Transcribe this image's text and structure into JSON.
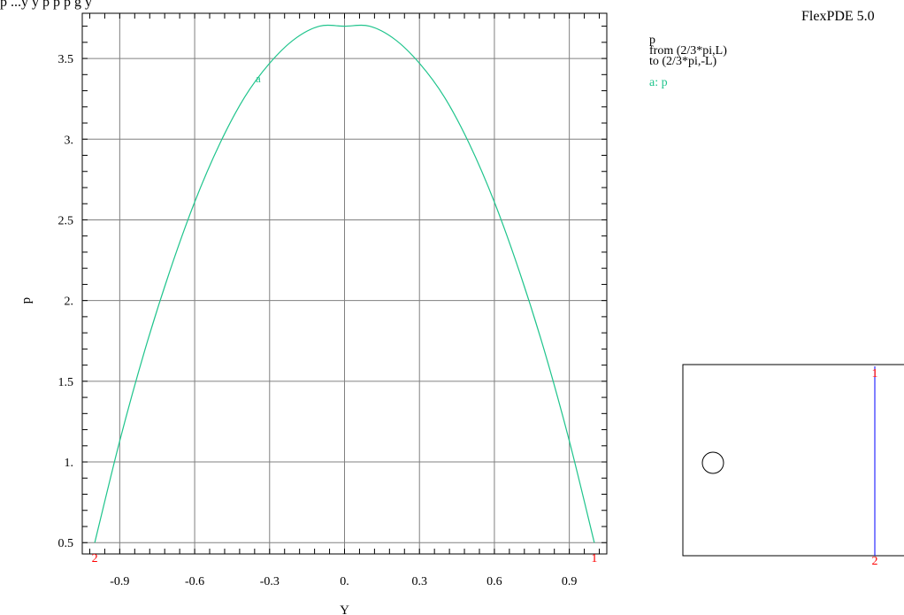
{
  "header": {
    "title": "p        ...y     y    p            p    p         g  y     ",
    "brand": "FlexPDE 5.0"
  },
  "legend": {
    "var": "p",
    "from": "from (2/3*pi,L)",
    "to": "to  (2/3*pi,-L)",
    "series_label": "a: p"
  },
  "chart_data": {
    "type": "line",
    "title": "",
    "xlabel": "Y",
    "ylabel": "p",
    "xlim": [
      -1.05,
      1.05
    ],
    "ylim": [
      0.43,
      3.78
    ],
    "x_ticks": [
      -0.9,
      -0.6,
      -0.3,
      0.0,
      0.3,
      0.6,
      0.9
    ],
    "x_tick_labels": [
      "-0.9",
      "-0.6",
      "-0.3",
      "0.",
      "0.3",
      "0.6",
      "0.9"
    ],
    "y_ticks": [
      0.5,
      1.0,
      1.5,
      2.0,
      2.5,
      3.0,
      3.5
    ],
    "y_tick_labels": [
      "0.5",
      "1.",
      "1.5",
      "2.",
      "2.5",
      "3.",
      "3.5"
    ],
    "grid": true,
    "series": [
      {
        "name": "a",
        "color": "#1fc48c",
        "x": [
          -1.0,
          -0.9,
          -0.8,
          -0.7,
          -0.6,
          -0.5,
          -0.4,
          -0.3,
          -0.2,
          -0.1,
          0.0,
          0.1,
          0.2,
          0.3,
          0.4,
          0.5,
          0.6,
          0.7,
          0.8,
          0.9,
          1.0
        ],
        "y": [
          0.5,
          1.13,
          1.69,
          2.18,
          2.61,
          2.97,
          3.26,
          3.47,
          3.62,
          3.7,
          3.7,
          3.7,
          3.62,
          3.47,
          3.26,
          2.97,
          2.61,
          2.18,
          1.69,
          1.13,
          0.5
        ]
      }
    ],
    "curve_label": {
      "text": "a",
      "x": -0.37,
      "y": 3.33
    },
    "endpoint_labels": [
      {
        "text": "2",
        "x": -1.0,
        "color": "#ff0000"
      },
      {
        "text": "1",
        "x": 1.0,
        "color": "#ff0000"
      }
    ]
  },
  "inset": {
    "cut_labels": [
      "1",
      "2"
    ],
    "cut_color": "#0000ff",
    "label_color": "#ff0000"
  }
}
